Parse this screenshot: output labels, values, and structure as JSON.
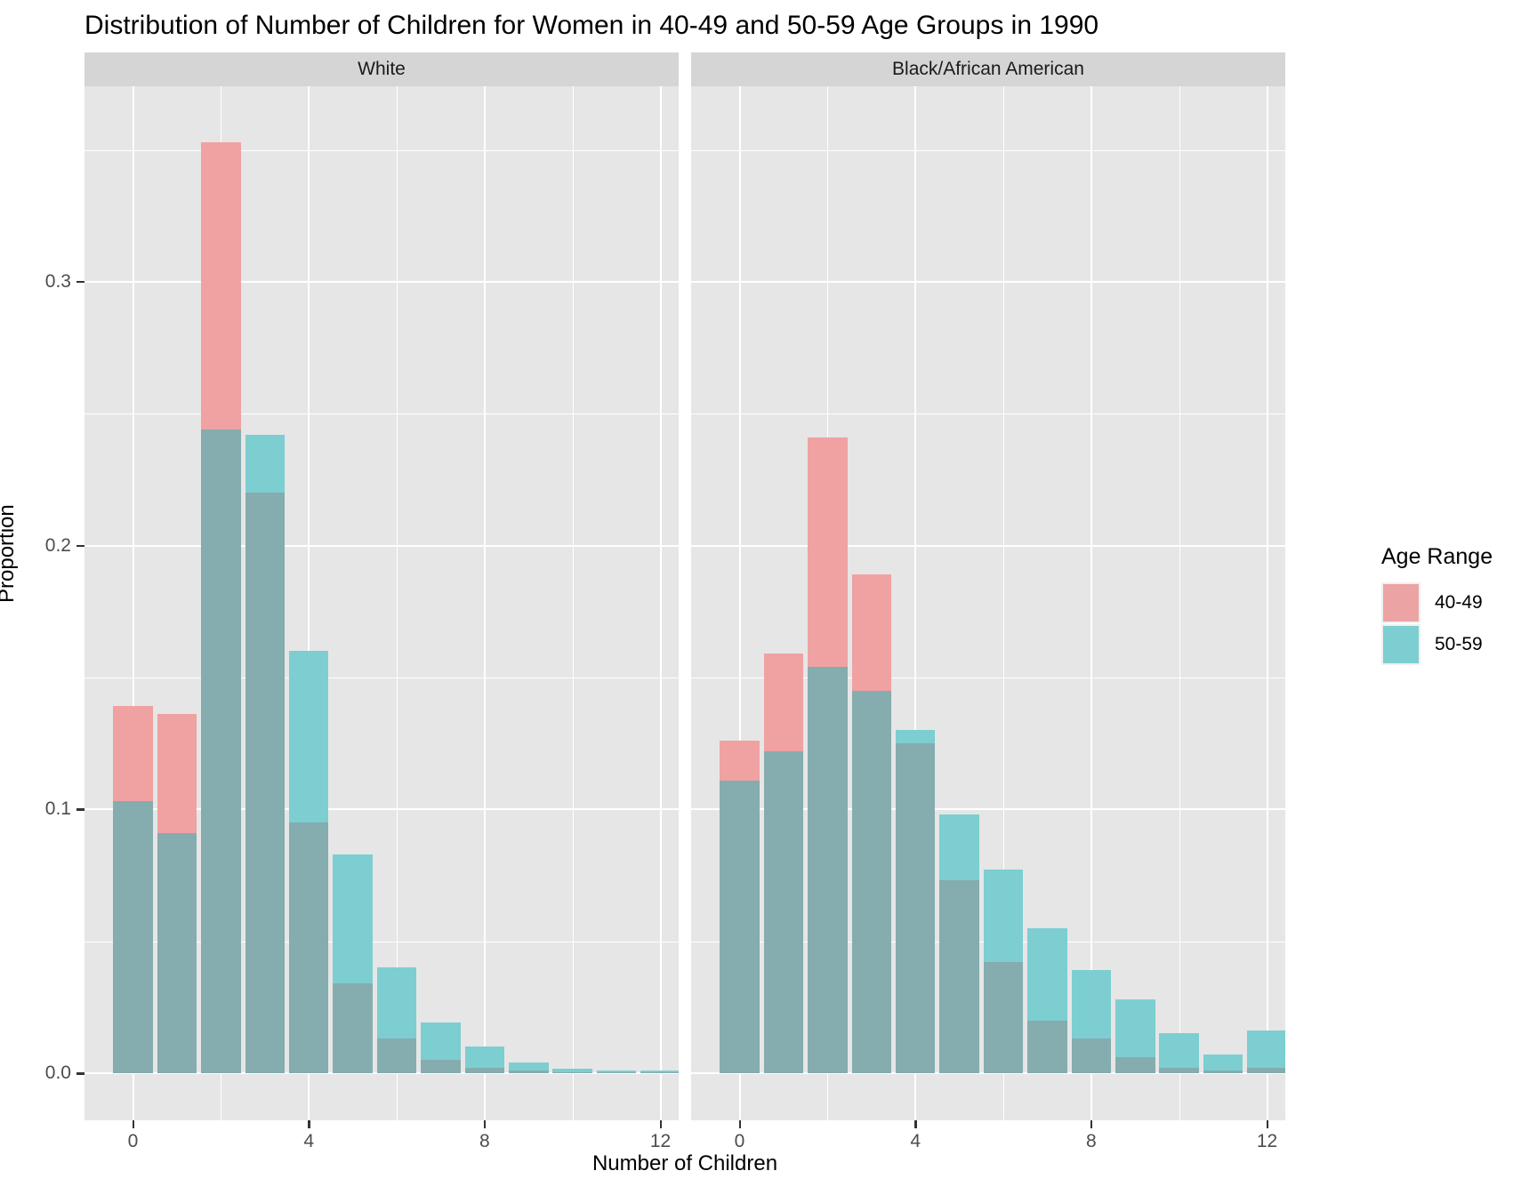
{
  "title": "Distribution of Number of Children for Women in 40-49 and 50-59 Age Groups in 1990",
  "y_axis": {
    "label": "Proportion",
    "ticks": [
      {
        "label": "0.0",
        "value": 0.0
      },
      {
        "label": "0.1",
        "value": 0.1
      },
      {
        "label": "0.2",
        "value": 0.2
      },
      {
        "label": "0.3",
        "value": 0.3
      }
    ]
  },
  "x_axis": {
    "label": "Number of Children",
    "ticks": [
      {
        "label": "0",
        "value": 0
      },
      {
        "label": "4",
        "value": 4
      },
      {
        "label": "8",
        "value": 8
      },
      {
        "label": "12",
        "value": 12
      }
    ]
  },
  "legend": {
    "title": "Age Range",
    "items": [
      {
        "label": "40-49",
        "color": "#ECA3A3"
      },
      {
        "label": "50-59",
        "color": "#7CCED1"
      }
    ]
  },
  "colors": {
    "fill_40_49": "#EFA2A1",
    "fill_50_59": "#7CCED1",
    "fill_overlap": "#85ACAE",
    "panel_bg": "#E6E6E6",
    "strip_bg": "#D5D5D5",
    "grid": "#FFFFFF"
  },
  "chart_data": {
    "type": "bar",
    "bar_mode": "overlaid-transparent (position identity)",
    "title": "Distribution of Number of Children for Women in 40-49 and 50-59 Age Groups in 1990",
    "xlabel": "Number of Children",
    "ylabel": "Proportion",
    "ylim": [
      0,
      0.374
    ],
    "x": [
      0,
      1,
      2,
      3,
      4,
      5,
      6,
      7,
      8,
      9,
      10,
      11,
      12
    ],
    "x_major_ticks": [
      0,
      4,
      8,
      12
    ],
    "x_minor_gridlines": [
      2,
      6,
      10
    ],
    "y_major_gridlines": [
      0.0,
      0.1,
      0.2,
      0.3
    ],
    "y_minor_gridlines": [
      0.05,
      0.15,
      0.25,
      0.35
    ],
    "legend_position": "right",
    "facets": [
      {
        "label": "White",
        "series": [
          {
            "name": "40-49",
            "values": [
              0.139,
              0.136,
              0.353,
              0.22,
              0.095,
              0.034,
              0.013,
              0.005,
              0.002,
              0.001,
              0.0005,
              0.0004,
              0.0004
            ]
          },
          {
            "name": "50-59",
            "values": [
              0.103,
              0.091,
              0.244,
              0.242,
              0.16,
              0.083,
              0.04,
              0.019,
              0.01,
              0.004,
              0.002,
              0.001,
              0.0012
            ]
          }
        ]
      },
      {
        "label": "Black/African American",
        "series": [
          {
            "name": "40-49",
            "values": [
              0.126,
              0.159,
              0.241,
              0.189,
              0.125,
              0.073,
              0.042,
              0.02,
              0.013,
              0.006,
              0.002,
              0.001,
              0.002
            ]
          },
          {
            "name": "50-59",
            "values": [
              0.111,
              0.122,
              0.154,
              0.145,
              0.13,
              0.098,
              0.077,
              0.055,
              0.039,
              0.028,
              0.015,
              0.007,
              0.016
            ]
          }
        ]
      }
    ]
  }
}
